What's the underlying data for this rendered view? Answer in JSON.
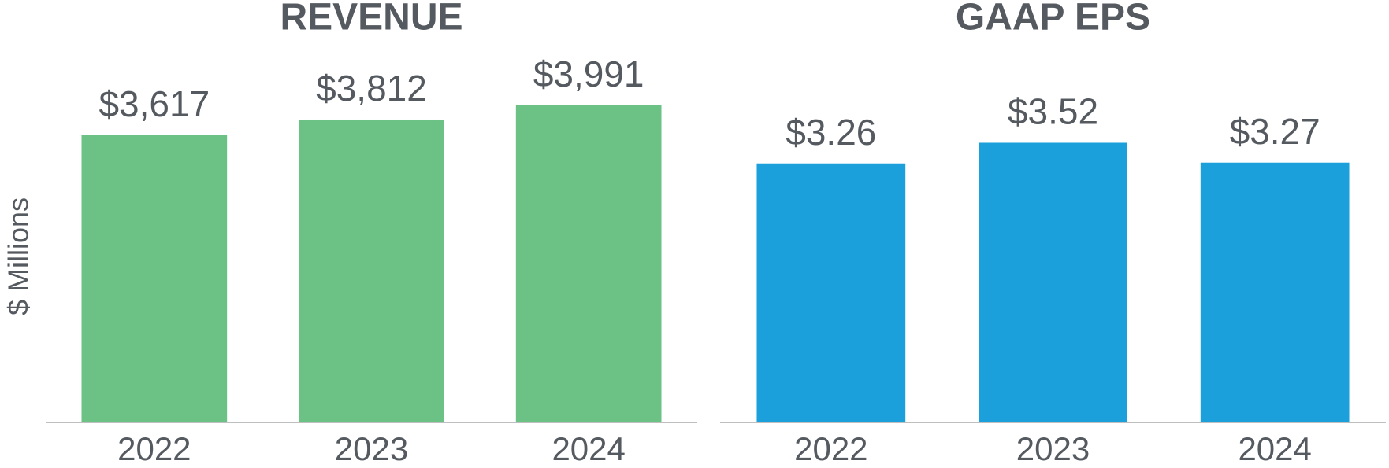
{
  "chart_data": [
    {
      "type": "bar",
      "title": "REVENUE",
      "y_label": "$ Millions",
      "categories": [
        "2022",
        "2023",
        "2024"
      ],
      "values": [
        3617,
        3812,
        3991
      ],
      "value_labels": [
        "$3,617",
        "$3,812",
        "$3,991"
      ],
      "color": "#6cc285",
      "ylim": [
        0,
        5000
      ]
    },
    {
      "type": "bar",
      "title": "GAAP EPS",
      "categories": [
        "2022",
        "2023",
        "2024"
      ],
      "values": [
        3.26,
        3.52,
        3.27
      ],
      "value_labels": [
        "$3.26",
        "$3.52",
        "$3.27"
      ],
      "color": "#1ca0db",
      "ylim": [
        0,
        5
      ]
    }
  ]
}
